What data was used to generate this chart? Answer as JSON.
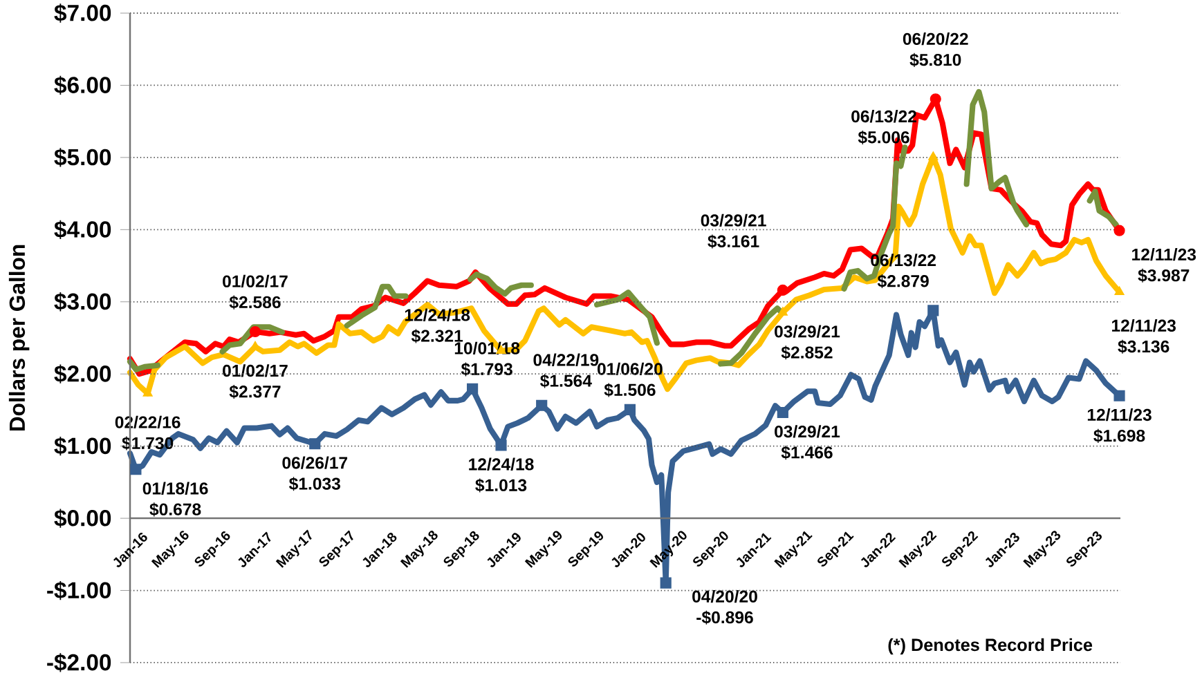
{
  "chart_data": {
    "type": "line",
    "ylabel": "Dollars per Gallon",
    "xlim": [
      "2016-01-01",
      "2023-12-14"
    ],
    "ylim": [
      -2,
      7
    ],
    "xticks": [
      {
        "value": "2016-01",
        "label": "Jan-16"
      },
      {
        "value": "2016-05",
        "label": "May-16"
      },
      {
        "value": "2016-09",
        "label": "Sep-16"
      },
      {
        "value": "2017-01",
        "label": "Jan-17"
      },
      {
        "value": "2017-05",
        "label": "May-17"
      },
      {
        "value": "2017-09",
        "label": "Sep-17"
      },
      {
        "value": "2018-01",
        "label": "Jan-18"
      },
      {
        "value": "2018-05",
        "label": "May-18"
      },
      {
        "value": "2018-09",
        "label": "Sep-18"
      },
      {
        "value": "2019-01",
        "label": "Jan-19"
      },
      {
        "value": "2019-05",
        "label": "May-19"
      },
      {
        "value": "2019-09",
        "label": "Sep-19"
      },
      {
        "value": "2020-01",
        "label": "Jan-20"
      },
      {
        "value": "2020-05",
        "label": "May-20"
      },
      {
        "value": "2020-09",
        "label": "Sep-20"
      },
      {
        "value": "2021-01",
        "label": "Jan-21"
      },
      {
        "value": "2021-05",
        "label": "May-21"
      },
      {
        "value": "2021-09",
        "label": "Sep-21"
      },
      {
        "value": "2022-01",
        "label": "Jan-22"
      },
      {
        "value": "2022-05",
        "label": "May-22"
      },
      {
        "value": "2022-09",
        "label": "Sep-22"
      },
      {
        "value": "2023-01",
        "label": "Jan-23"
      },
      {
        "value": "2023-05",
        "label": "May-23"
      },
      {
        "value": "2023-09",
        "label": "Sep-23"
      }
    ],
    "yticks": [
      {
        "value": -2,
        "label": "-$2.00"
      },
      {
        "value": -1,
        "label": "-$1.00"
      },
      {
        "value": 0,
        "label": "$0.00"
      },
      {
        "value": 1,
        "label": "$1.00"
      },
      {
        "value": 2,
        "label": "$2.00"
      },
      {
        "value": 3,
        "label": "$3.00"
      },
      {
        "value": 4,
        "label": "$4.00"
      },
      {
        "value": 5,
        "label": "$5.00"
      },
      {
        "value": 6,
        "label": "$6.00"
      },
      {
        "value": 7,
        "label": "$7.00"
      }
    ],
    "grid": "y",
    "marker": "none",
    "line_style": "solid",
    "series": [
      {
        "color": "#ff0000",
        "x": [
          "2016-01-01",
          "2016-01-28",
          "2016-02-25",
          "2016-04-25",
          "2016-06-10",
          "2016-07-13",
          "2016-08-10",
          "2016-09-07",
          "2016-10-01",
          "2016-10-19",
          "2016-11-15",
          "2017-01-02",
          "2017-02-13",
          "2017-03-15",
          "2017-05-01",
          "2017-05-25",
          "2017-06-22",
          "2017-07-25",
          "2017-08-22",
          "2017-09-04",
          "2017-10-13",
          "2017-11-10",
          "2017-12-15",
          "2018-01-19",
          "2018-03-13",
          "2018-04-15",
          "2018-05-22",
          "2018-06-25",
          "2018-08-15",
          "2018-09-22",
          "2018-10-10",
          "2018-11-22",
          "2019-01-13",
          "2019-02-07",
          "2019-03-04",
          "2019-04-01",
          "2019-05-01",
          "2019-07-01",
          "2019-09-01",
          "2019-09-22",
          "2019-11-10",
          "2020-01-01",
          "2020-02-10",
          "2020-03-10",
          "2020-04-10",
          "2020-05-04",
          "2020-06-10",
          "2020-07-19",
          "2020-08-28",
          "2020-10-10",
          "2020-10-28",
          "2020-12-19",
          "2021-01-19",
          "2021-02-13",
          "2021-03-29",
          "2021-04-07",
          "2021-05-10",
          "2021-07-01",
          "2021-07-28",
          "2021-08-25",
          "2021-09-19",
          "2021-10-13",
          "2021-11-15",
          "2021-12-15",
          "2022-01-01",
          "2022-02-01",
          "2022-02-15",
          "2022-03-01",
          "2022-03-13",
          "2022-04-01",
          "2022-04-13",
          "2022-04-25",
          "2022-05-19",
          "2022-06-20",
          "2022-07-10",
          "2022-08-01",
          "2022-08-19",
          "2022-09-13",
          "2022-10-10",
          "2022-11-01",
          "2022-12-01",
          "2022-12-28",
          "2023-02-04",
          "2023-02-28",
          "2023-03-25",
          "2023-04-13",
          "2023-04-28",
          "2023-05-25",
          "2023-06-22",
          "2023-07-07",
          "2023-07-25",
          "2023-08-15",
          "2023-09-10",
          "2023-09-25",
          "2023-10-10",
          "2023-11-01",
          "2023-12-11"
        ],
        "values": [
          2.21,
          2.0,
          2.04,
          2.27,
          2.44,
          2.42,
          2.31,
          2.42,
          2.38,
          2.48,
          2.44,
          2.586,
          2.56,
          2.58,
          2.54,
          2.56,
          2.46,
          2.52,
          2.6,
          2.79,
          2.79,
          2.9,
          2.94,
          3.06,
          2.98,
          3.12,
          3.29,
          3.23,
          3.21,
          3.29,
          3.41,
          3.18,
          2.97,
          2.97,
          3.09,
          3.1,
          3.19,
          3.06,
          2.97,
          3.08,
          3.08,
          3.03,
          2.89,
          2.79,
          2.56,
          2.41,
          2.41,
          2.44,
          2.44,
          2.39,
          2.39,
          2.62,
          2.72,
          2.94,
          3.161,
          3.14,
          3.26,
          3.34,
          3.39,
          3.36,
          3.45,
          3.72,
          3.74,
          3.63,
          3.63,
          3.97,
          4.15,
          5.24,
          5.09,
          5.09,
          5.17,
          5.59,
          5.55,
          5.81,
          5.48,
          4.92,
          5.11,
          4.86,
          5.34,
          5.32,
          4.57,
          4.55,
          4.36,
          4.26,
          4.11,
          4.09,
          3.93,
          3.8,
          3.78,
          3.84,
          4.34,
          4.49,
          4.63,
          4.55,
          4.55,
          4.26,
          3.987
        ]
      },
      {
        "color": "#ffc000",
        "x": [
          "2016-01-01",
          "2016-01-25",
          "2016-02-22",
          "2016-03-13",
          "2016-04-15",
          "2016-06-10",
          "2016-08-01",
          "2016-08-28",
          "2016-10-01",
          "2016-11-19",
          "2017-01-02",
          "2017-01-25",
          "2017-03-15",
          "2017-04-13",
          "2017-05-07",
          "2017-05-25",
          "2017-07-01",
          "2017-08-04",
          "2017-08-22",
          "2017-09-04",
          "2017-10-07",
          "2017-11-10",
          "2017-12-15",
          "2018-01-10",
          "2018-01-28",
          "2018-02-25",
          "2018-03-19",
          "2018-04-22",
          "2018-05-22",
          "2018-06-25",
          "2018-08-10",
          "2018-09-28",
          "2018-11-04",
          "2018-12-24",
          "2019-01-13",
          "2019-02-07",
          "2019-03-04",
          "2019-04-13",
          "2019-04-28",
          "2019-06-13",
          "2019-07-01",
          "2019-08-22",
          "2019-09-15",
          "2019-11-10",
          "2019-12-22",
          "2020-01-10",
          "2020-02-10",
          "2020-02-25",
          "2020-03-19",
          "2020-04-10",
          "2020-04-25",
          "2020-05-19",
          "2020-06-19",
          "2020-07-19",
          "2020-08-28",
          "2020-09-19",
          "2020-10-28",
          "2020-11-19",
          "2020-12-19",
          "2021-01-19",
          "2021-02-13",
          "2021-03-29",
          "2021-05-07",
          "2021-06-15",
          "2021-07-28",
          "2021-09-19",
          "2021-10-25",
          "2021-12-01",
          "2021-12-25",
          "2022-02-01",
          "2022-02-22",
          "2022-03-04",
          "2022-03-15",
          "2022-04-04",
          "2022-04-19",
          "2022-05-13",
          "2022-06-13",
          "2022-07-04",
          "2022-08-04",
          "2022-09-07",
          "2022-09-28",
          "2022-10-15",
          "2022-11-01",
          "2022-12-10",
          "2022-12-28",
          "2023-01-19",
          "2023-02-15",
          "2023-03-07",
          "2023-04-04",
          "2023-04-25",
          "2023-05-15",
          "2023-06-07",
          "2023-07-07",
          "2023-08-01",
          "2023-08-22",
          "2023-09-10",
          "2023-10-04",
          "2023-11-01",
          "2023-12-11"
        ],
        "values": [
          2.02,
          1.85,
          1.73,
          2.06,
          2.23,
          2.38,
          2.15,
          2.23,
          2.27,
          2.17,
          2.377,
          2.31,
          2.33,
          2.44,
          2.38,
          2.42,
          2.29,
          2.4,
          2.4,
          2.69,
          2.56,
          2.58,
          2.46,
          2.52,
          2.65,
          2.56,
          2.73,
          2.85,
          2.96,
          2.83,
          2.85,
          2.91,
          2.6,
          2.321,
          2.33,
          2.34,
          2.46,
          2.87,
          2.91,
          2.68,
          2.75,
          2.56,
          2.65,
          2.6,
          2.56,
          2.58,
          2.44,
          2.46,
          2.22,
          1.94,
          1.79,
          1.94,
          2.15,
          2.19,
          2.22,
          2.17,
          2.15,
          2.12,
          2.27,
          2.41,
          2.6,
          2.852,
          3.03,
          3.09,
          3.17,
          3.19,
          3.34,
          3.28,
          3.3,
          3.53,
          3.63,
          4.32,
          4.24,
          4.07,
          4.2,
          4.63,
          5.006,
          4.76,
          4.01,
          3.68,
          3.91,
          3.78,
          3.78,
          3.12,
          3.26,
          3.51,
          3.36,
          3.47,
          3.68,
          3.53,
          3.57,
          3.59,
          3.68,
          3.86,
          3.82,
          3.86,
          3.57,
          3.36,
          3.136
        ]
      },
      {
        "color": "#77933c",
        "x": [
          "2016-01-01",
          "2016-01-19",
          "2016-02-13",
          "2016-03-22",
          "2016-06-01",
          "2016-09-28",
          "2016-10-19",
          "2016-11-19",
          "2016-12-28",
          "2017-02-13",
          "2017-03-22",
          "2017-06-01",
          "2017-09-28",
          "2017-11-10",
          "2017-12-19",
          "2018-01-10",
          "2018-01-28",
          "2018-02-15",
          "2018-03-19",
          "2018-06-01",
          "2018-09-25",
          "2018-10-13",
          "2018-11-13",
          "2018-12-07",
          "2019-01-04",
          "2019-01-22",
          "2019-02-22",
          "2019-03-22",
          "2019-06-01",
          "2019-10-01",
          "2019-12-01",
          "2020-01-01",
          "2020-01-19",
          "2020-02-10",
          "2020-03-04",
          "2020-03-25",
          "2020-07-01",
          "2020-09-28",
          "2020-10-28",
          "2020-11-28",
          "2021-01-07",
          "2021-02-13",
          "2021-03-13",
          "2021-03-22",
          "2021-06-01",
          "2021-09-25",
          "2021-10-13",
          "2021-11-04",
          "2021-12-01",
          "2021-12-22",
          "2022-01-07",
          "2022-02-04",
          "2022-02-15",
          "2022-02-25",
          "2022-03-10",
          "2022-03-22",
          "2022-06-01",
          "2022-09-19",
          "2022-10-07",
          "2022-10-25",
          "2022-11-10",
          "2022-12-01",
          "2022-12-25",
          "2023-01-10",
          "2023-02-04",
          "2023-02-15",
          "2023-03-13",
          "2023-06-01",
          "2023-09-15",
          "2023-10-01",
          "2023-10-13",
          "2023-11-10",
          "2023-12-01"
        ],
        "values": [
          2.17,
          2.06,
          2.1,
          2.12,
          null,
          2.31,
          2.4,
          2.42,
          2.65,
          2.65,
          2.58,
          null,
          2.67,
          2.81,
          2.92,
          3.21,
          3.21,
          3.08,
          3.08,
          null,
          3.31,
          3.38,
          3.32,
          3.2,
          3.11,
          3.19,
          3.23,
          3.23,
          null,
          2.96,
          3.03,
          3.13,
          3.03,
          2.91,
          2.79,
          2.43,
          null,
          2.14,
          2.15,
          2.29,
          2.56,
          2.79,
          2.91,
          2.87,
          null,
          3.18,
          3.41,
          3.43,
          3.32,
          3.36,
          3.61,
          3.95,
          4.05,
          4.92,
          4.88,
          5.14,
          null,
          4.63,
          5.73,
          5.91,
          5.63,
          4.57,
          4.67,
          4.72,
          4.36,
          4.26,
          4.07,
          null,
          4.4,
          4.53,
          4.26,
          4.18,
          4.07
        ]
      },
      {
        "color": "#376092",
        "x": [
          "2016-01-01",
          "2016-01-18",
          "2016-02-07",
          "2016-03-04",
          "2016-03-28",
          "2016-05-04",
          "2016-05-22",
          "2016-07-04",
          "2016-07-25",
          "2016-08-19",
          "2016-09-13",
          "2016-10-10",
          "2016-11-10",
          "2016-12-01",
          "2017-01-07",
          "2017-02-19",
          "2017-03-15",
          "2017-04-07",
          "2017-05-04",
          "2017-06-26",
          "2017-07-25",
          "2017-08-28",
          "2017-09-28",
          "2017-11-01",
          "2017-11-28",
          "2018-01-07",
          "2018-02-07",
          "2018-03-13",
          "2018-04-15",
          "2018-05-13",
          "2018-06-01",
          "2018-07-01",
          "2018-07-22",
          "2018-08-19",
          "2018-09-04",
          "2018-10-01",
          "2018-10-28",
          "2018-11-22",
          "2018-12-24",
          "2019-01-13",
          "2019-02-10",
          "2019-03-13",
          "2019-04-22",
          "2019-05-13",
          "2019-06-07",
          "2019-07-01",
          "2019-08-01",
          "2019-09-10",
          "2019-10-01",
          "2019-11-01",
          "2019-12-01",
          "2020-01-06",
          "2020-01-19",
          "2020-02-15",
          "2020-03-01",
          "2020-03-10",
          "2020-03-25",
          "2020-04-07",
          "2020-04-20",
          "2020-04-27",
          "2020-05-10",
          "2020-06-10",
          "2020-07-19",
          "2020-08-25",
          "2020-09-04",
          "2020-09-28",
          "2020-10-28",
          "2020-11-28",
          "2021-01-07",
          "2021-02-07",
          "2021-03-07",
          "2021-03-29",
          "2021-05-01",
          "2021-06-10",
          "2021-07-01",
          "2021-07-10",
          "2021-08-15",
          "2021-09-13",
          "2021-10-15",
          "2021-11-07",
          "2021-11-25",
          "2021-12-13",
          "2021-12-25",
          "2022-01-13",
          "2022-02-04",
          "2022-02-25",
          "2022-03-10",
          "2022-04-01",
          "2022-04-10",
          "2022-04-22",
          "2022-05-04",
          "2022-05-19",
          "2022-06-13",
          "2022-06-28",
          "2022-07-07",
          "2022-08-01",
          "2022-08-19",
          "2022-09-13",
          "2022-09-28",
          "2022-10-10",
          "2022-10-28",
          "2022-11-25",
          "2022-12-10",
          "2023-01-10",
          "2023-01-19",
          "2023-02-10",
          "2023-03-07",
          "2023-04-04",
          "2023-04-28",
          "2023-05-28",
          "2023-06-15",
          "2023-07-15",
          "2023-08-15",
          "2023-09-04",
          "2023-10-04",
          "2023-11-01",
          "2023-12-11"
        ],
        "values": [
          0.9,
          0.678,
          0.73,
          0.92,
          0.88,
          1.11,
          1.17,
          1.09,
          0.97,
          1.11,
          1.05,
          1.21,
          1.05,
          1.25,
          1.25,
          1.28,
          1.16,
          1.25,
          1.11,
          1.033,
          1.17,
          1.14,
          1.23,
          1.36,
          1.34,
          1.53,
          1.44,
          1.53,
          1.65,
          1.71,
          1.57,
          1.75,
          1.63,
          1.63,
          1.65,
          1.793,
          1.53,
          1.24,
          1.013,
          1.27,
          1.32,
          1.39,
          1.564,
          1.48,
          1.24,
          1.41,
          1.32,
          1.48,
          1.27,
          1.36,
          1.39,
          1.506,
          1.36,
          1.22,
          1.1,
          0.74,
          0.5,
          0.6,
          -0.896,
          0.36,
          0.79,
          0.93,
          0.98,
          1.03,
          0.89,
          0.96,
          0.89,
          1.08,
          1.17,
          1.29,
          1.56,
          1.466,
          1.62,
          1.76,
          1.76,
          1.6,
          1.58,
          1.7,
          1.99,
          1.93,
          1.68,
          1.64,
          1.83,
          2.03,
          2.26,
          2.82,
          2.55,
          2.26,
          2.57,
          2.37,
          2.72,
          2.66,
          2.879,
          2.39,
          2.47,
          2.16,
          2.3,
          1.85,
          2.16,
          2.03,
          2.18,
          1.78,
          1.87,
          1.91,
          1.76,
          1.91,
          1.62,
          1.91,
          1.7,
          1.62,
          1.68,
          1.95,
          1.93,
          2.18,
          2.05,
          1.87,
          1.698
        ]
      },
      {
        "type": "scatter",
        "marker": "circle",
        "color": "#ff0000",
        "x": [
          "2017-01-02",
          "2021-03-29",
          "2022-06-20",
          "2023-12-11"
        ],
        "values": [
          2.586,
          3.161,
          5.81,
          3.987
        ]
      },
      {
        "type": "scatter",
        "marker": "triangle",
        "color": "#ffc000",
        "x": [
          "2016-02-22",
          "2017-01-02",
          "2018-12-24",
          "2021-03-29",
          "2022-06-13",
          "2023-12-11"
        ],
        "values": [
          1.73,
          2.377,
          2.321,
          2.852,
          5.006,
          3.136
        ]
      },
      {
        "type": "scatter",
        "marker": "square",
        "color": "#376092",
        "x": [
          "2016-01-18",
          "2017-06-26",
          "2018-10-01",
          "2018-12-24",
          "2019-04-22",
          "2020-01-06",
          "2020-04-20",
          "2021-03-29",
          "2022-06-13",
          "2023-12-11"
        ],
        "values": [
          0.678,
          1.033,
          1.793,
          1.013,
          1.564,
          1.506,
          -0.896,
          1.466,
          2.879,
          1.698
        ]
      }
    ],
    "annotations": [
      {
        "text": "01/18/16 $0.678",
        "x": "2016-01-18",
        "y": 0.678
      },
      {
        "text": "02/22/16 $1.730",
        "x": "2016-02-22",
        "y": 1.73
      },
      {
        "text": "01/02/17 $2.586",
        "x": "2017-01-02",
        "y": 2.586
      },
      {
        "text": "01/02/17 $2.377",
        "x": "2017-01-02",
        "y": 2.377
      },
      {
        "text": "06/26/17 $1.033",
        "x": "2017-06-26",
        "y": 1.033
      },
      {
        "text": "12/24/18 $2.321",
        "x": "2018-12-24",
        "y": 2.321
      },
      {
        "text": "10/01/18 $1.793",
        "x": "2018-10-01",
        "y": 1.793
      },
      {
        "text": "12/24/18 $1.013",
        "x": "2018-12-24",
        "y": 1.013
      },
      {
        "text": "04/22/19 $1.564",
        "x": "2019-04-22",
        "y": 1.564
      },
      {
        "text": "01/06/20 $1.506",
        "x": "2020-01-06",
        "y": 1.506
      },
      {
        "text": "04/20/20 -$0.896",
        "x": "2020-04-20",
        "y": -0.896
      },
      {
        "text": "03/29/21 $3.161",
        "x": "2021-03-29",
        "y": 3.161
      },
      {
        "text": "03/29/21 $2.852",
        "x": "2021-03-29",
        "y": 2.852
      },
      {
        "text": "03/29/21 $1.466",
        "x": "2021-03-29",
        "y": 1.466
      },
      {
        "text": "06/13/22 $5.006",
        "x": "2022-06-13",
        "y": 5.006
      },
      {
        "text": "06/20/22 $5.810",
        "x": "2022-06-20",
        "y": 5.81
      },
      {
        "text": "06/13/22 $2.879",
        "x": "2022-06-13",
        "y": 2.879
      },
      {
        "text": "12/11/23 $3.987",
        "x": "2023-12-11",
        "y": 3.987
      },
      {
        "text": "12/11/23 $3.136",
        "x": "2023-12-11",
        "y": 3.136
      },
      {
        "text": "12/11/23 $1.698",
        "x": "2023-12-11",
        "y": 1.698
      },
      "(*) Denotes Record Price"
    ]
  }
}
